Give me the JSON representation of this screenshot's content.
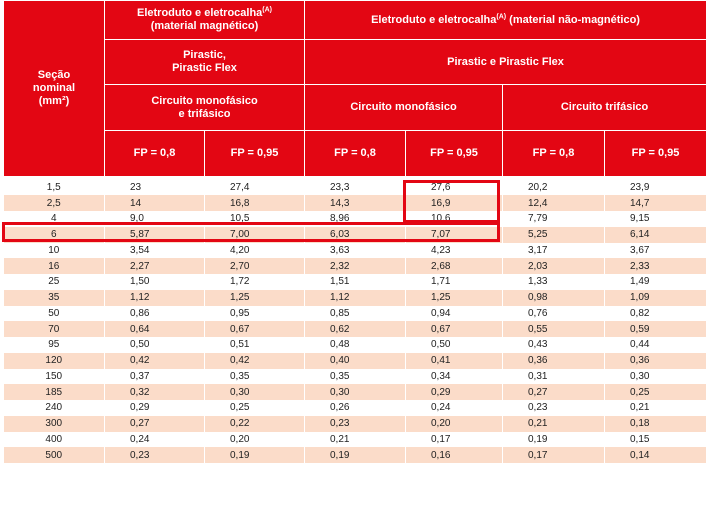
{
  "header": {
    "secao": [
      "Seção",
      "nominal",
      "(mm²)"
    ],
    "magnetico": {
      "prefix": "Eletroduto e eletrocalha",
      "sup": "(A)",
      "suffix": "(material magnético)"
    },
    "nao_magnetico": {
      "prefix": "Eletroduto e eletrocalha",
      "sup": "(A)",
      "suffix": "(material não-magnético)"
    },
    "product_mag": [
      "Pirastic,",
      "Pirastic Flex"
    ],
    "product_nao": "Pirastic e Pirastic Flex",
    "circ_mag": [
      "Circuito monofásico",
      "e trifásico"
    ],
    "circ_mono": "Circuito monofásico",
    "circ_tri": "Circuito trifásico",
    "fp": [
      "FP = 0,8",
      "FP = 0,95",
      "FP = 0,8",
      "FP = 0,95",
      "FP = 0,8",
      "FP = 0,95"
    ]
  },
  "rows": [
    [
      "1,5",
      "23",
      "27,4",
      "23,3",
      "27,6",
      "20,2",
      "23,9"
    ],
    [
      "2,5",
      "14",
      "16,8",
      "14,3",
      "16,9",
      "12,4",
      "14,7"
    ],
    [
      "4",
      "9,0",
      "10,5",
      "8,96",
      "10,6",
      "7,79",
      "9,15"
    ],
    [
      "6",
      "5,87",
      "7,00",
      "6,03",
      "7,07",
      "5,25",
      "6,14"
    ],
    [
      "10",
      "3,54",
      "4,20",
      "3,63",
      "4,23",
      "3,17",
      "3,67"
    ],
    [
      "16",
      "2,27",
      "2,70",
      "2,32",
      "2,68",
      "2,03",
      "2,33"
    ],
    [
      "25",
      "1,50",
      "1,72",
      "1,51",
      "1,71",
      "1,33",
      "1,49"
    ],
    [
      "35",
      "1,12",
      "1,25",
      "1,12",
      "1,25",
      "0,98",
      "1,09"
    ],
    [
      "50",
      "0,86",
      "0,95",
      "0,85",
      "0,94",
      "0,76",
      "0,82"
    ],
    [
      "70",
      "0,64",
      "0,67",
      "0,62",
      "0,67",
      "0,55",
      "0,59"
    ],
    [
      "95",
      "0,50",
      "0,51",
      "0,48",
      "0,50",
      "0,43",
      "0,44"
    ],
    [
      "120",
      "0,42",
      "0,42",
      "0,40",
      "0,41",
      "0,36",
      "0,36"
    ],
    [
      "150",
      "0,37",
      "0,35",
      "0,35",
      "0,34",
      "0,31",
      "0,30"
    ],
    [
      "185",
      "0,32",
      "0,30",
      "0,30",
      "0,29",
      "0,27",
      "0,25"
    ],
    [
      "240",
      "0,29",
      "0,25",
      "0,26",
      "0,24",
      "0,23",
      "0,21"
    ],
    [
      "300",
      "0,27",
      "0,22",
      "0,23",
      "0,20",
      "0,21",
      "0,18"
    ],
    [
      "400",
      "0,24",
      "0,20",
      "0,21",
      "0,17",
      "0,19",
      "0,15"
    ],
    [
      "500",
      "0,23",
      "0,19",
      "0,19",
      "0,16",
      "0,17",
      "0,14"
    ]
  ],
  "colors": {
    "header_red": "#e30613",
    "stripe": "#fbdcc9",
    "highlight_border": "#e30613"
  }
}
